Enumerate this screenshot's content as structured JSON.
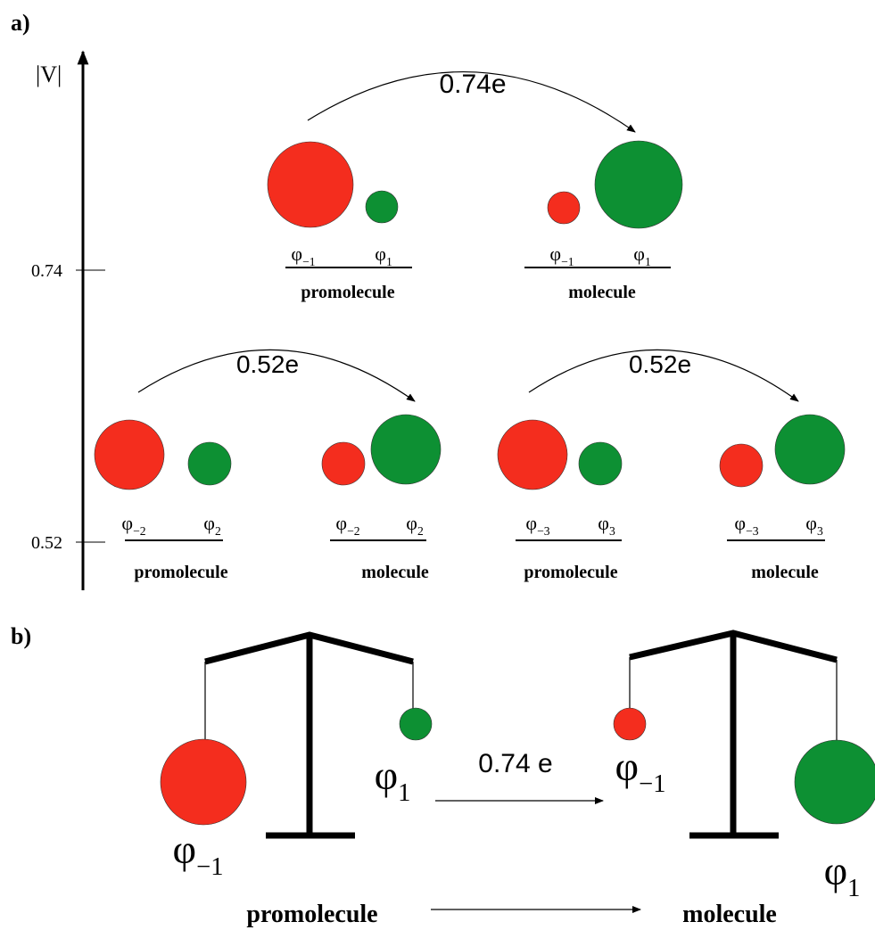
{
  "panel_a": {
    "label": "a)",
    "axis_label": "|V|",
    "ticks": [
      "0.74",
      "0.52"
    ],
    "transfers": [
      {
        "amount": "0.74e",
        "from": {
          "name": "promolecule",
          "orbitals": [
            {
              "symbol": "φ",
              "sub": "−1"
            },
            {
              "symbol": "φ",
              "sub": "1"
            }
          ]
        },
        "to": {
          "name": "molecule",
          "orbitals": [
            {
              "symbol": "φ",
              "sub": "−1"
            },
            {
              "symbol": "φ",
              "sub": "1"
            }
          ]
        }
      },
      {
        "amount": "0.52e",
        "from": {
          "name": "promolecule",
          "orbitals": [
            {
              "symbol": "φ",
              "sub": "−2"
            },
            {
              "symbol": "φ",
              "sub": "2"
            }
          ]
        },
        "to": {
          "name": "molecule",
          "orbitals": [
            {
              "symbol": "φ",
              "sub": "−2"
            },
            {
              "symbol": "φ",
              "sub": "2"
            }
          ]
        }
      },
      {
        "amount": "0.52e",
        "from": {
          "name": "promolecule",
          "orbitals": [
            {
              "symbol": "φ",
              "sub": "−3"
            },
            {
              "symbol": "φ",
              "sub": "3"
            }
          ]
        },
        "to": {
          "name": "molecule",
          "orbitals": [
            {
              "symbol": "φ",
              "sub": "−3"
            },
            {
              "symbol": "φ",
              "sub": "3"
            }
          ]
        }
      }
    ]
  },
  "panel_b": {
    "label": "b)",
    "amount": "0.74 e",
    "from": {
      "name": "promolecule",
      "orbitals": [
        {
          "symbol": "φ",
          "sub": "−1"
        },
        {
          "symbol": "φ",
          "sub": "1"
        }
      ]
    },
    "to": {
      "name": "molecule",
      "orbitals": [
        {
          "symbol": "φ",
          "sub": "−1"
        },
        {
          "symbol": "φ",
          "sub": "1"
        }
      ]
    }
  }
}
